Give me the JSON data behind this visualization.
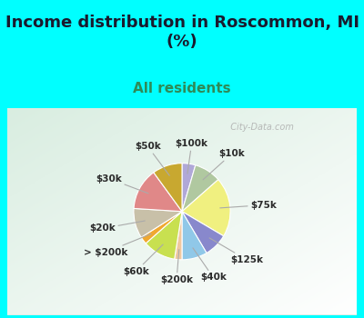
{
  "title": "Income distribution in Roscommon, MI\n(%)",
  "subtitle": "All residents",
  "bg_cyan": "#00FFFF",
  "bg_chart_color": "#d8ede6",
  "labels": [
    "$100k",
    "$10k",
    "$75k",
    "$125k",
    "$40k",
    "$200k",
    "$60k",
    "> $200k",
    "$20k",
    "$30k",
    "$50k"
  ],
  "sizes": [
    4.5,
    9.0,
    20.0,
    8.0,
    8.5,
    2.5,
    11.0,
    2.5,
    10.0,
    14.0,
    10.0
  ],
  "colors": [
    "#b0a8d8",
    "#b0c8a0",
    "#f0f080",
    "#8888cc",
    "#90c8e8",
    "#f0c8a0",
    "#c8e050",
    "#f0a830",
    "#c8c0a8",
    "#e08888",
    "#c8a830"
  ],
  "startangle": 90,
  "label_fontsize": 7.5,
  "title_fontsize": 13,
  "subtitle_fontsize": 11,
  "title_color": "#1a1a2e",
  "subtitle_color": "#2e8b57",
  "watermark": "  City-Data.com",
  "watermark_fontsize": 7
}
